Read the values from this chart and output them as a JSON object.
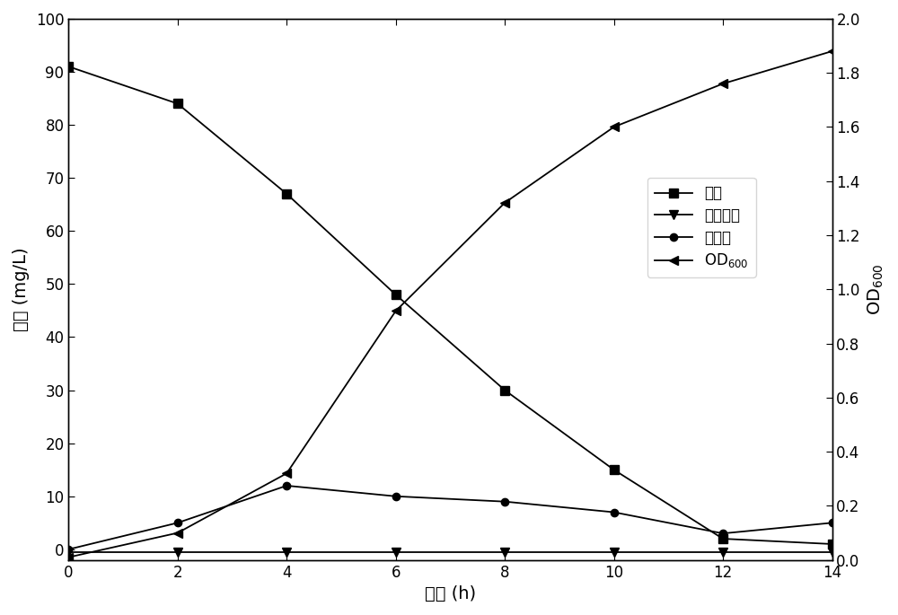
{
  "time": [
    0,
    2,
    4,
    6,
    8,
    10,
    12,
    14
  ],
  "ammonia": [
    91,
    84,
    67,
    48,
    30,
    15,
    2,
    1
  ],
  "nitrite": [
    -0.5,
    -0.5,
    -0.5,
    -0.5,
    -0.5,
    -0.5,
    -0.5,
    -0.5
  ],
  "nitrate": [
    0,
    5,
    12,
    10,
    9,
    7,
    3,
    5
  ],
  "od600": [
    0.01,
    0.1,
    0.32,
    0.92,
    1.32,
    1.6,
    1.76,
    1.88
  ],
  "xlabel": "时间 (h)",
  "ylabel_left": "浓度 (mg/L)",
  "ylabel_right": "OD$_{600}$",
  "legend_ammonia": "氨氮",
  "legend_nitrite": "亚硝酸氮",
  "legend_nitrate": "硝酸氮",
  "legend_od": "OD$_{600}$",
  "xlim": [
    0,
    14
  ],
  "ylim_left": [
    0,
    100
  ],
  "ylim_right": [
    0,
    2.0
  ],
  "yticks_left": [
    0,
    10,
    20,
    30,
    40,
    50,
    60,
    70,
    80,
    90,
    100
  ],
  "yticks_right": [
    0.0,
    0.2,
    0.4,
    0.6,
    0.8,
    1.0,
    1.2,
    1.4,
    1.6,
    1.8,
    2.0
  ],
  "xticks": [
    0,
    2,
    4,
    6,
    8,
    10,
    12,
    14
  ],
  "line_color": "#000000",
  "background_color": "#ffffff",
  "fig_width": 10.0,
  "fig_height": 6.85
}
